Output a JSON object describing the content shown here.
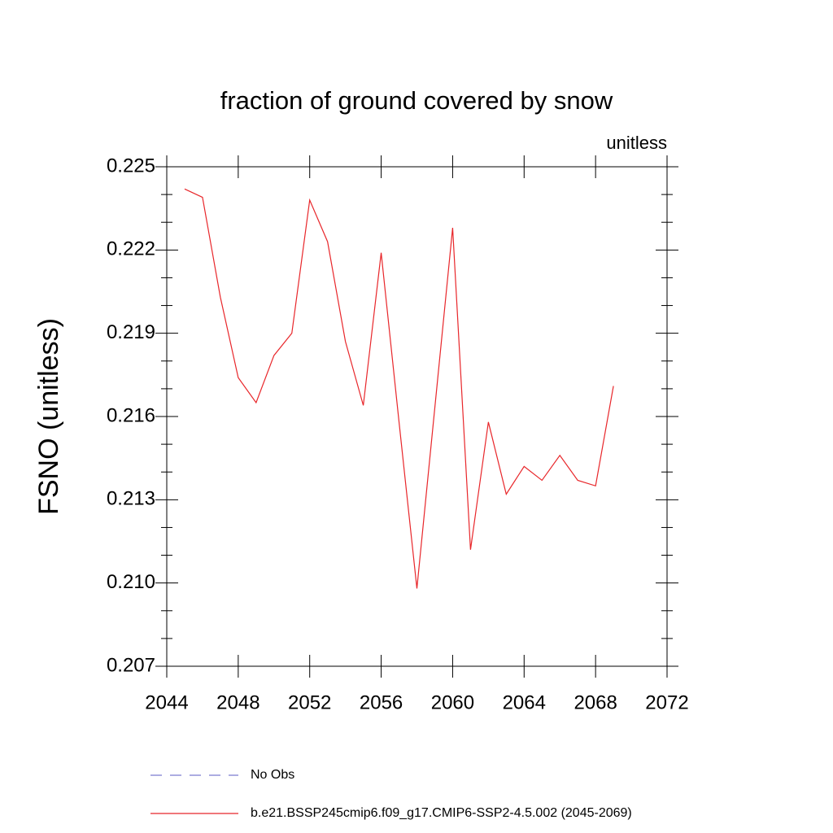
{
  "chart_data": {
    "type": "line",
    "title": "fraction of ground covered by snow",
    "units": "unitless",
    "ylabel": "FSNO  (unitless)",
    "x": [
      2045,
      2046,
      2047,
      2048,
      2049,
      2050,
      2051,
      2052,
      2053,
      2054,
      2055,
      2056,
      2057,
      2058,
      2059,
      2060,
      2061,
      2062,
      2063,
      2064,
      2065,
      2066,
      2067,
      2068,
      2069
    ],
    "series": [
      {
        "name": "No Obs",
        "color": "#7b7bd0",
        "dashed": true,
        "values": [
          null,
          null,
          null,
          null,
          null,
          null,
          null,
          null,
          null,
          null,
          null,
          null,
          null,
          null,
          null,
          null,
          null,
          null,
          null,
          null,
          null,
          null,
          null,
          null,
          null
        ]
      },
      {
        "name": "b.e21.BSSP245cmip6.f09_g17.CMIP6-SSP2-4.5.002 (2045-2069)",
        "color": "#e8262a",
        "dashed": false,
        "values": [
          0.2242,
          0.2239,
          0.2203,
          0.2174,
          0.2165,
          0.2182,
          0.219,
          0.2238,
          0.2223,
          0.2187,
          0.2164,
          0.2219,
          0.2158,
          0.2098,
          0.2163,
          0.2228,
          0.2112,
          0.2158,
          0.2132,
          0.2142,
          0.2137,
          0.2146,
          0.2137,
          0.2135,
          0.2171
        ]
      }
    ],
    "xlim": [
      2044,
      2072
    ],
    "xticks": [
      2044,
      2048,
      2052,
      2056,
      2060,
      2064,
      2068,
      2072
    ],
    "ylim": [
      0.207,
      0.225
    ],
    "yticks": [
      0.207,
      {
        "value": 0.21,
        "label": "0.210"
      },
      0.213,
      0.216,
      0.219,
      0.222,
      0.225
    ],
    "grid": false
  }
}
